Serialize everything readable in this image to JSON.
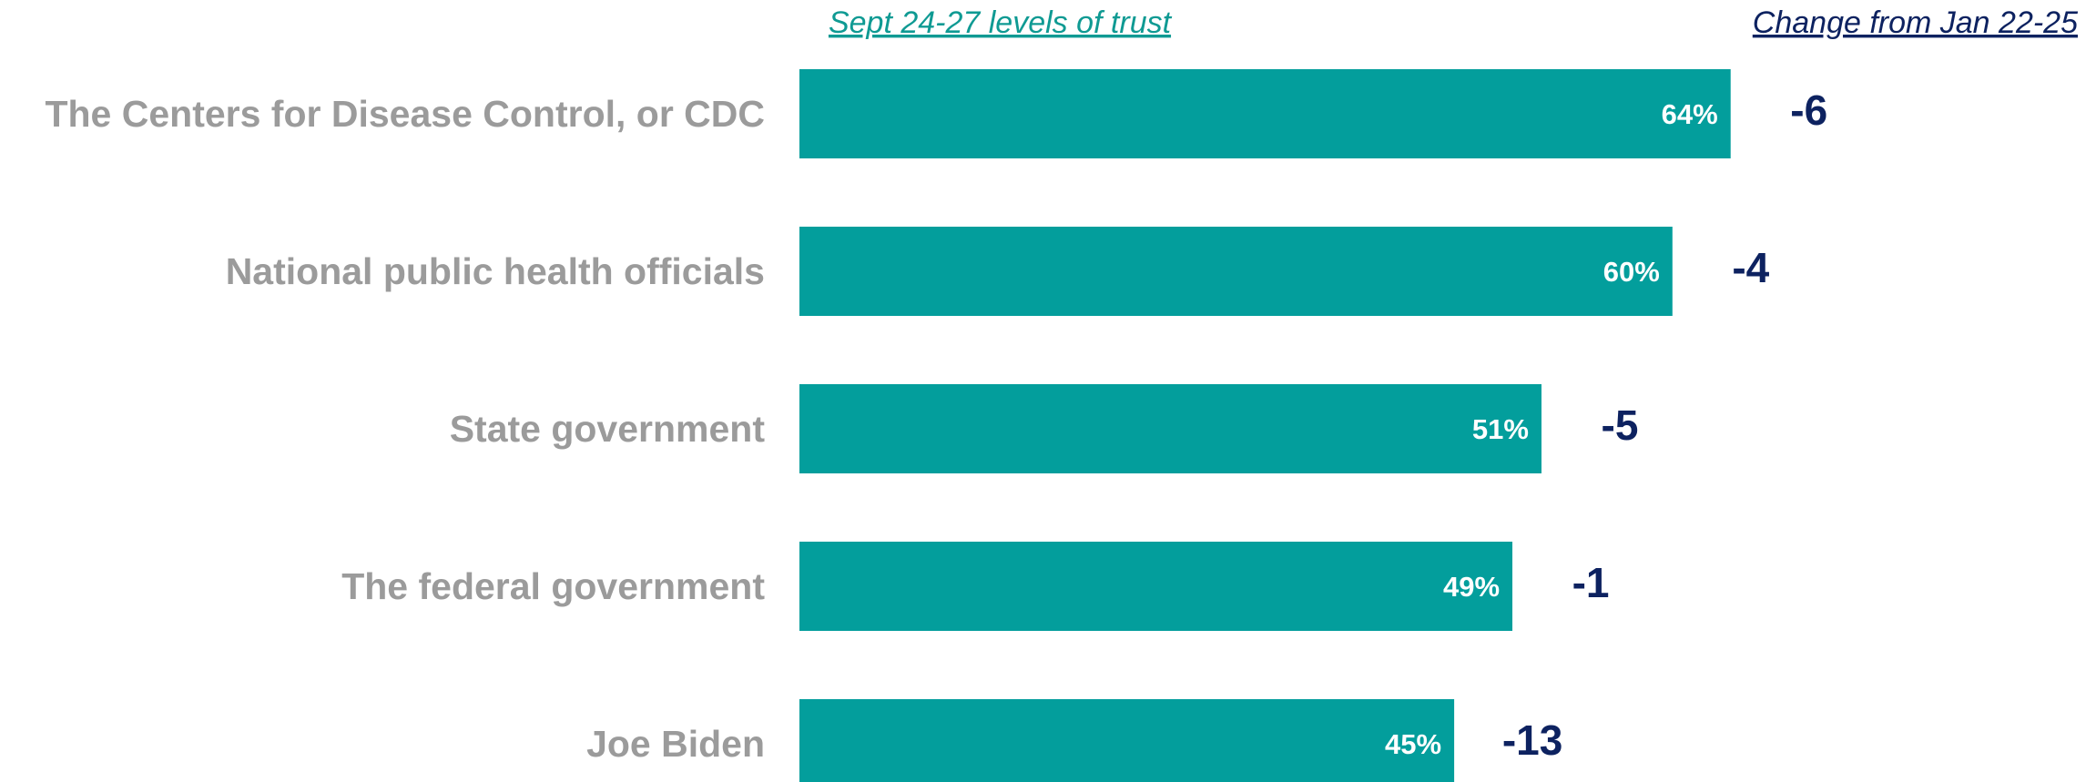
{
  "headers": {
    "left": "Sept 24-27 levels of trust",
    "right": "Change from Jan 22-25"
  },
  "colors": {
    "bar": "#039E9C",
    "category_text": "#9B9B9B",
    "change_text": "#0D2260",
    "left_header": "#0F9A93",
    "right_header": "#0D2260",
    "bar_label_text": "#FFFFFF"
  },
  "chart_data": {
    "type": "bar",
    "orientation": "horizontal",
    "categories": [
      "The Centers for Disease Control, or CDC",
      "National public health officials",
      "State government",
      "The federal government",
      "Joe Biden"
    ],
    "values": [
      64,
      60,
      51,
      49,
      45
    ],
    "value_labels": [
      "64%",
      "60%",
      "51%",
      "49%",
      "45%"
    ],
    "changes": [
      "-6",
      "-4",
      "-5",
      "-1",
      "-13"
    ],
    "unit": "%",
    "xlim": [
      0,
      100
    ],
    "grid": false,
    "legend": "none"
  }
}
